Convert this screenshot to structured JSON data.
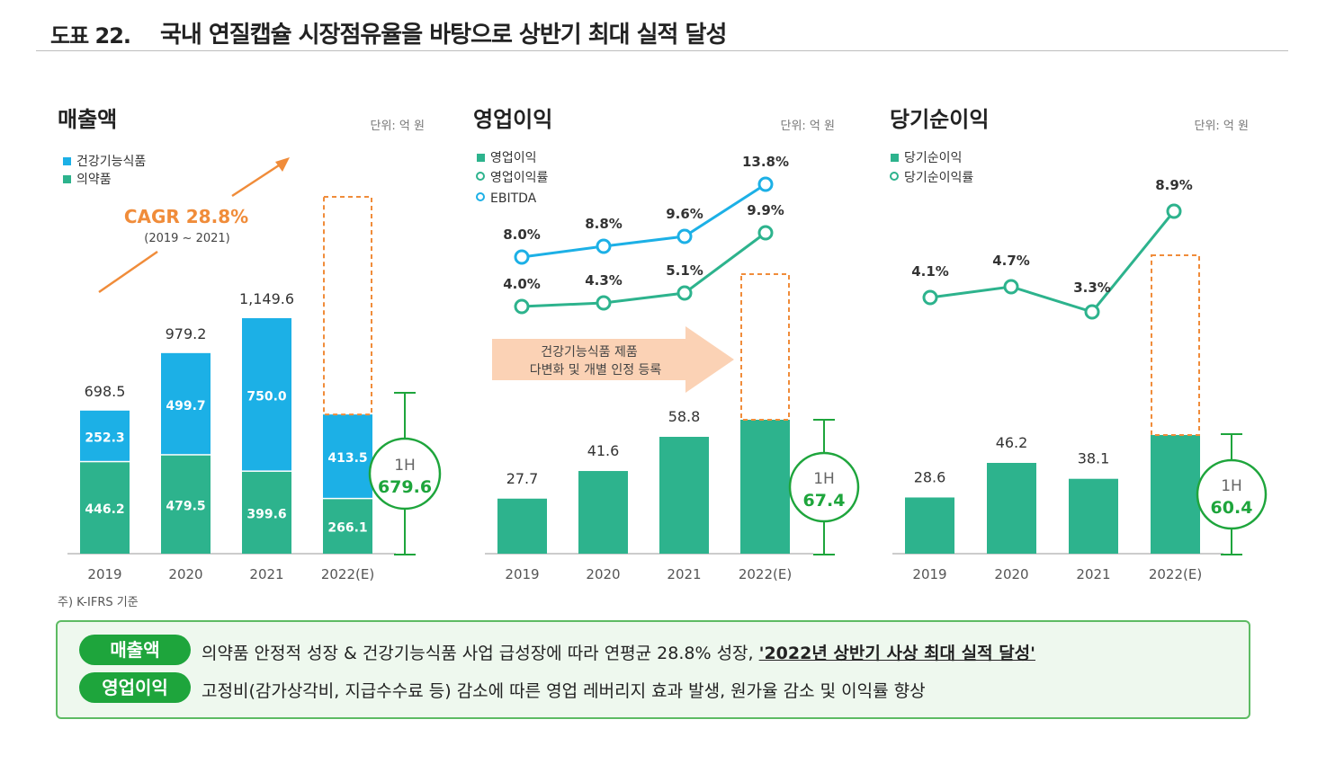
{
  "header": {
    "figure_no": "도표 22.",
    "title": "국내 연질캡슐 시장점유율을 바탕으로 상반기 최대 실적 달성"
  },
  "colors": {
    "blue": "#1cb0e6",
    "green": "#2db38d",
    "orange": "#f08c3a",
    "highlight": "#1ea53c",
    "text": "#333333"
  },
  "footnote": "주) K-IFRS 기준",
  "chart_data": [
    {
      "type": "bar",
      "title": "매출액",
      "unit": "단위: 억 원",
      "categories": [
        "2019",
        "2020",
        "2021",
        "2022(E)"
      ],
      "series": [
        {
          "name": "의약품",
          "values": [
            446.2,
            479.5,
            399.6,
            266.1
          ]
        },
        {
          "name": "건강기능식품",
          "values": [
            252.3,
            499.7,
            750.0,
            413.5
          ]
        }
      ],
      "totals": [
        "698.5",
        "979.2",
        "1,149.6",
        ""
      ],
      "value_labels": {
        "의약품": [
          "446.2",
          "479.5",
          "399.6",
          "266.1"
        ],
        "건강기능식품": [
          "252.3",
          "499.7",
          "750.0",
          "413.5"
        ]
      },
      "legend": [
        "건강기능식품",
        "의약품"
      ],
      "annotation": {
        "cagr": "CAGR 28.8%",
        "period": "(2019 ~ 2021)"
      },
      "h1_badge": {
        "label": "1H",
        "value": "679.6"
      },
      "ylim": [
        0,
        1300
      ]
    },
    {
      "type": "bar",
      "title": "영업이익",
      "unit": "단위: 억 원",
      "categories": [
        "2019",
        "2020",
        "2021",
        "2022(E)"
      ],
      "series": [
        {
          "name": "영업이익",
          "values": [
            27.7,
            41.6,
            58.8,
            67.4
          ]
        },
        {
          "name": "영업이익률",
          "values": [
            4.0,
            4.3,
            5.1,
            9.9
          ]
        },
        {
          "name": "EBITDA",
          "values": [
            8.0,
            8.8,
            9.6,
            13.8
          ]
        }
      ],
      "bar_labels": [
        "27.7",
        "41.6",
        "58.8",
        ""
      ],
      "margin_labels": [
        "4.0%",
        "4.3%",
        "5.1%",
        "9.9%"
      ],
      "ebitda_labels": [
        "8.0%",
        "8.8%",
        "9.6%",
        "13.8%"
      ],
      "legend": [
        "영업이익",
        "영업이익률",
        "EBITDA"
      ],
      "arrow_text": [
        "건강기능식품 제품",
        "다변화 및 개별 인정 등록"
      ],
      "h1_badge": {
        "label": "1H",
        "value": "67.4"
      },
      "ylim": [
        0,
        100
      ]
    },
    {
      "type": "bar",
      "title": "당기순이익",
      "unit": "단위: 억 원",
      "categories": [
        "2019",
        "2020",
        "2021",
        "2022(E)"
      ],
      "series": [
        {
          "name": "당기순이익",
          "values": [
            28.6,
            46.2,
            38.1,
            60.4
          ]
        },
        {
          "name": "당기순이익률",
          "values": [
            4.1,
            4.7,
            3.3,
            8.9
          ]
        }
      ],
      "bar_labels": [
        "28.6",
        "46.2",
        "38.1",
        ""
      ],
      "margin_labels": [
        "4.1%",
        "4.7%",
        "3.3%",
        "8.9%"
      ],
      "legend": [
        "당기순이익",
        "당기순이익률"
      ],
      "h1_badge": {
        "label": "1H",
        "value": "60.4"
      },
      "ylim": [
        0,
        100
      ]
    }
  ],
  "summary": [
    {
      "tag": "매출액",
      "text": "의약품 안정적 성장 & 건강기능식품 사업 급성장에 따라 연평균 28.8% 성장, ",
      "highlight": "'2022년 상반기 사상 최대 실적 달성'"
    },
    {
      "tag": "영업이익",
      "text": "고정비(감가상각비, 지급수수료 등) 감소에 따른 영업 레버리지 효과 발생, 원가율 감소 및 이익률 향상",
      "highlight": ""
    }
  ]
}
